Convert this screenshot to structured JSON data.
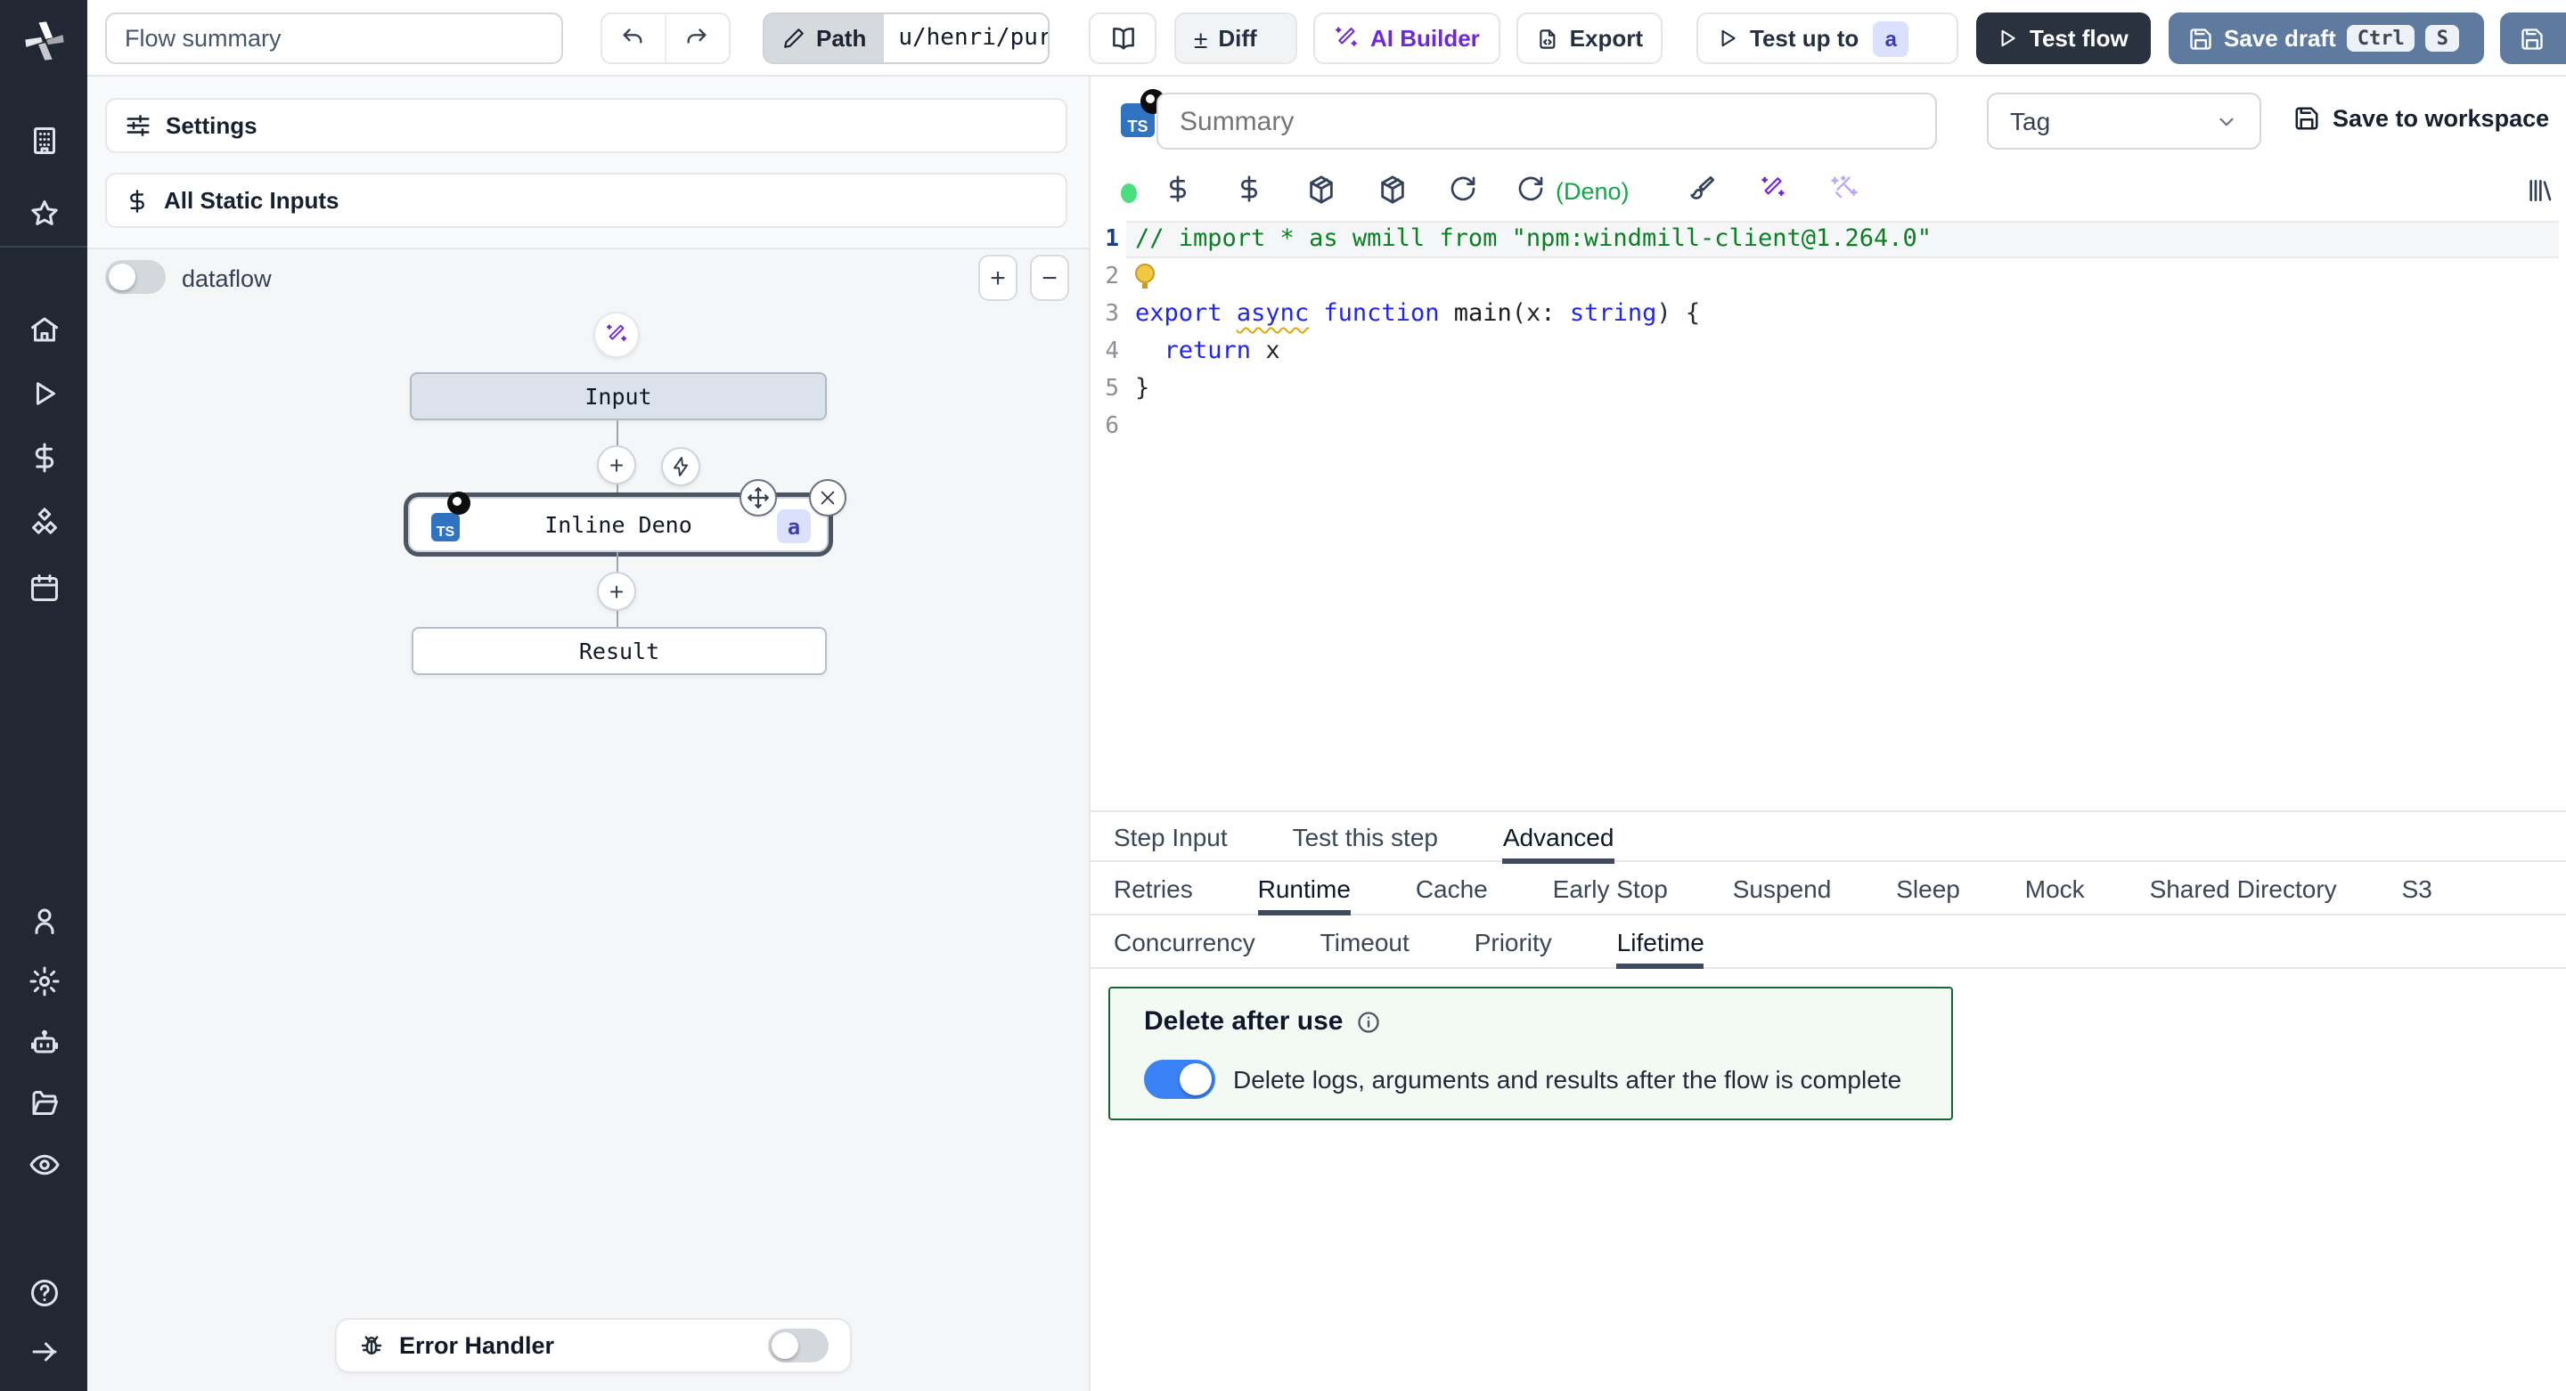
{
  "topbar": {
    "flow_summary": "Flow summary",
    "path_label": "Path",
    "path_value": "u/henri/pur",
    "diff_label": "Diff",
    "diff_glyph": "±",
    "ai_builder_label": "AI Builder",
    "export_label": "Export",
    "test_up_to_label": "Test up to",
    "test_up_to_badge": "a",
    "test_flow_label": "Test flow",
    "save_draft_label": "Save draft",
    "kbd_ctrl": "Ctrl",
    "kbd_s": "S"
  },
  "sidebar": {
    "icons": [
      "windmill-logo",
      "workspace-icon",
      "favorites-star-icon",
      "home-icon",
      "runs-play-icon",
      "variables-dollar-icon",
      "resources-boxes-icon",
      "schedules-calendar-icon",
      "user-icon",
      "settings-gear-icon",
      "workers-robot-icon",
      "folders-icon",
      "audit-eye-icon",
      "help-question-icon",
      "expand-arrow-icon"
    ]
  },
  "flow_panel": {
    "settings_label": "Settings",
    "static_inputs_label": "All Static Inputs",
    "dataflow_label": "dataflow",
    "zoom_in": "+",
    "zoom_out": "−",
    "error_handler_label": "Error Handler"
  },
  "graph": {
    "input_label": "Input",
    "step_label": "Inline Deno",
    "step_badge": "a",
    "result_label": "Result"
  },
  "editor": {
    "summary_placeholder": "Summary",
    "tag_label": "Tag",
    "save_to_workspace_label": "Save to workspace",
    "deno_note": "(Deno)",
    "toolbar_icons": [
      "status-dot",
      "variable-dollar-icon",
      "static-dollar-icon",
      "package-icon",
      "package-icon",
      "reload-icon",
      "reset-deno-icon",
      "format-brush-icon",
      "ai-wand-icon",
      "ai-sparkles-icon",
      "library-icon"
    ],
    "code_lines": [
      {
        "n": "1",
        "active": true,
        "segs": [
          {
            "c": "comment",
            "t": "// import * as wmill from \"npm:windmill-client@1.264.0\""
          }
        ]
      },
      {
        "n": "2",
        "bulb": true,
        "segs": []
      },
      {
        "n": "3",
        "segs": [
          {
            "c": "kw",
            "t": "export"
          },
          {
            "c": "pl",
            "t": " "
          },
          {
            "c": "kw",
            "w": true,
            "t": "async"
          },
          {
            "c": "pl",
            "t": " "
          },
          {
            "c": "kw",
            "t": "function"
          },
          {
            "c": "pl",
            "t": " "
          },
          {
            "c": "fn",
            "t": "main"
          },
          {
            "c": "pl",
            "t": "(x: "
          },
          {
            "c": "kw",
            "t": "string"
          },
          {
            "c": "pl",
            "t": ") {"
          }
        ]
      },
      {
        "n": "4",
        "segs": [
          {
            "c": "pl",
            "t": "  "
          },
          {
            "c": "kw",
            "t": "return"
          },
          {
            "c": "pl",
            "t": " x"
          }
        ]
      },
      {
        "n": "5",
        "segs": [
          {
            "c": "pl",
            "t": "}"
          }
        ]
      },
      {
        "n": "6",
        "segs": []
      }
    ]
  },
  "tabs": {
    "main": [
      "Step Input",
      "Test this step",
      "Advanced"
    ],
    "advanced": [
      "Retries",
      "Runtime",
      "Cache",
      "Early Stop",
      "Suspend",
      "Sleep",
      "Mock",
      "Shared Directory",
      "S3"
    ],
    "runtime": [
      "Concurrency",
      "Timeout",
      "Priority",
      "Lifetime"
    ]
  },
  "lifetime": {
    "title": "Delete after use",
    "toggle_text": "Delete logs, arguments and results after the flow is complete"
  },
  "colors": {
    "accent_purple": "#6d28d9",
    "deno_green": "#16a34a",
    "status_green": "#4ade80",
    "save_draft_blue": "#5e7a9f",
    "dark_button": "#2a3240",
    "delete_border_green": "#166534",
    "ts_badge_blue": "#3073c0",
    "badge_indigo_bg": "#dbe1fd",
    "badge_indigo_text": "#3d3db8",
    "toggle_on_blue": "#3b82f6"
  }
}
